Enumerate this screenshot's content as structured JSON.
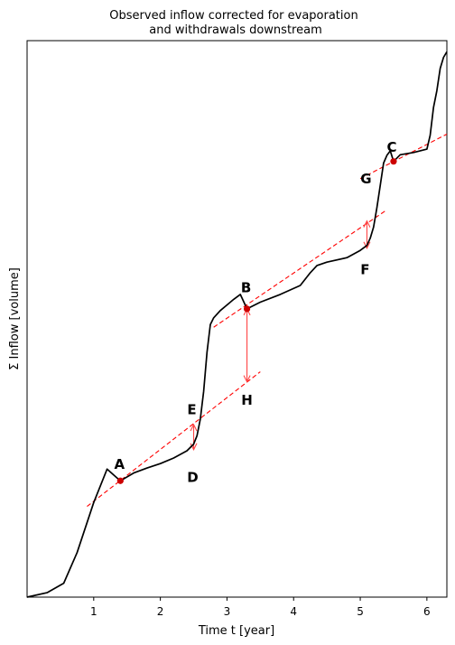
{
  "chart_data": {
    "type": "line",
    "title_lines": [
      "Observed inflow corrected for evaporation",
      "and withdrawals downstream"
    ],
    "xlabel": "Time t [year]",
    "ylabel": "Σ Inflow [volume]",
    "xlim": [
      0,
      6.3
    ],
    "ylim": [
      0,
      100
    ],
    "xticks": [
      1,
      2,
      3,
      4,
      5,
      6
    ],
    "yticks_shown": false,
    "grid": false,
    "colors": {
      "curve": "#000000",
      "tangent": "#ff0000",
      "marker": "#cc0000",
      "arrow": "#ff4444"
    },
    "series": [
      {
        "x": [
          0.0,
          0.3,
          0.55,
          0.75,
          1.0,
          1.2,
          1.4,
          1.6,
          1.8,
          2.0,
          2.2,
          2.4,
          2.5,
          2.55,
          2.6,
          2.65,
          2.7,
          2.75,
          2.8,
          2.9,
          3.0,
          3.1,
          3.2,
          3.3,
          3.5,
          3.8,
          4.1,
          4.25,
          4.35,
          4.5,
          4.8,
          5.0,
          5.1,
          5.15,
          5.2,
          5.25,
          5.3,
          5.35,
          5.4,
          5.45,
          5.5,
          5.6,
          5.8,
          6.0,
          6.05,
          6.1,
          6.15,
          6.2,
          6.25,
          6.3
        ],
        "y": [
          0.0,
          0.8,
          2.5,
          8.0,
          17.0,
          23.0,
          20.9,
          22.3,
          23.2,
          24.0,
          25.0,
          26.3,
          27.5,
          29.0,
          32.0,
          37.0,
          44.0,
          49.0,
          50.2,
          51.5,
          52.5,
          53.5,
          54.4,
          51.8,
          53.0,
          54.4,
          56.0,
          58.3,
          59.6,
          60.2,
          61.0,
          62.3,
          63.2,
          64.5,
          66.5,
          70.0,
          74.0,
          78.0,
          79.4,
          80.2,
          78.3,
          79.5,
          79.9,
          80.5,
          83.0,
          88.0,
          91.0,
          95.0,
          97.0,
          98.0
        ]
      }
    ],
    "tangents": [
      {
        "x": [
          0.9,
          3.5
        ],
        "y": [
          16.3,
          40.5
        ]
      },
      {
        "x": [
          2.8,
          5.4
        ],
        "y": [
          48.5,
          69.6
        ]
      },
      {
        "x": [
          5.0,
          6.3
        ],
        "y": [
          75.2,
          83.2
        ]
      }
    ],
    "points": [
      {
        "label": "A",
        "x": 1.4,
        "y": 20.9,
        "marker": true
      },
      {
        "label": "B",
        "x": 3.3,
        "y": 51.8,
        "marker": true
      },
      {
        "label": "C",
        "x": 5.5,
        "y": 78.3,
        "marker": true
      },
      {
        "label": "D",
        "x": 2.5,
        "y": 24.2,
        "marker": false
      },
      {
        "label": "E",
        "x": 2.5,
        "y": 31.0,
        "marker": false
      },
      {
        "label": "F",
        "x": 5.1,
        "y": 63.5,
        "marker": false
      },
      {
        "label": "G",
        "x": 5.1,
        "y": 70.9,
        "marker": false
      },
      {
        "label": "H",
        "x": 3.3,
        "y": 38.7,
        "marker": false
      }
    ],
    "arrows": [
      {
        "x": 2.5,
        "from_y": 31.0,
        "to_y": 26.5
      },
      {
        "x": 3.3,
        "from_y": 51.8,
        "to_y": 38.7
      },
      {
        "x": 5.1,
        "from_y": 67.6,
        "to_y": 62.7
      }
    ]
  }
}
